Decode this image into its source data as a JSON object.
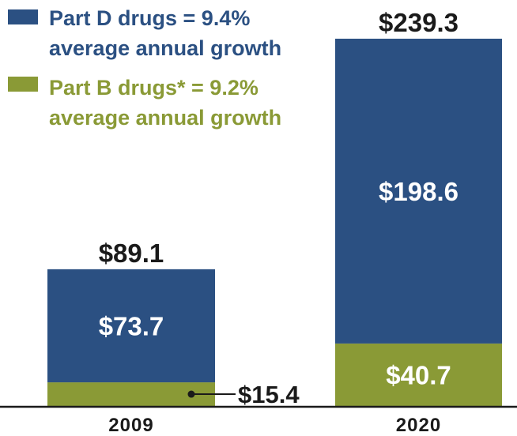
{
  "colors": {
    "part_d": "#2b5082",
    "part_b": "#8a9a36",
    "axis": "#1a1a1a",
    "text": "#1a1a1a"
  },
  "legend": [
    {
      "key": "part_d",
      "line1": "Part D drugs = 9.4%",
      "line2": "average annual growth"
    },
    {
      "key": "part_b",
      "line1": "Part B drugs* = 9.2%",
      "line2": "average annual growth"
    }
  ],
  "chart_data": {
    "type": "bar",
    "stacked": true,
    "categories": [
      "2009",
      "2020"
    ],
    "series": [
      {
        "name": "Part B drugs*",
        "values": [
          15.4,
          40.7
        ],
        "labels": [
          "$15.4",
          "$40.7"
        ]
      },
      {
        "name": "Part D drugs",
        "values": [
          73.7,
          198.6
        ],
        "labels": [
          "$73.7",
          "$198.6"
        ]
      }
    ],
    "totals": [
      89.1,
      239.3
    ],
    "total_labels": [
      "$89.1",
      "$239.3"
    ],
    "ylim": [
      0,
      239.3
    ],
    "grid": false,
    "legend_position": "top-left",
    "xlabel": "",
    "ylabel": ""
  }
}
